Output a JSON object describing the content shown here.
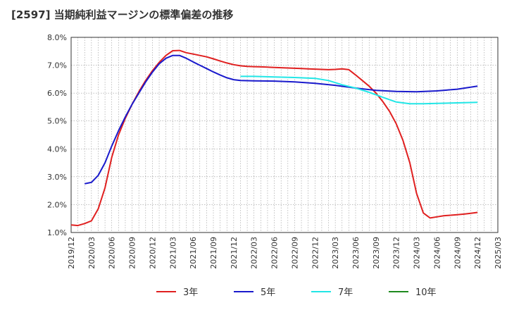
{
  "chart_data": {
    "type": "line",
    "title": "[2597]  当期純利益マージンの標準偏差の推移",
    "xlabel": "",
    "ylabel": "",
    "ylim": [
      1.0,
      8.0
    ],
    "yticks": [
      "1.0%",
      "2.0%",
      "3.0%",
      "4.0%",
      "5.0%",
      "6.0%",
      "7.0%",
      "8.0%"
    ],
    "xlim": [
      "2019-12",
      "2025-03"
    ],
    "xticks": [
      "2019/12",
      "2020/03",
      "2020/06",
      "2020/09",
      "2020/12",
      "2021/03",
      "2021/06",
      "2021/09",
      "2021/12",
      "2022/03",
      "2022/06",
      "2022/09",
      "2022/12",
      "2023/03",
      "2023/06",
      "2023/09",
      "2023/12",
      "2024/03",
      "2024/06",
      "2024/09",
      "2024/12",
      "2025/03"
    ],
    "grid": true,
    "legend_position": "bottom",
    "series": [
      {
        "name": "3年",
        "color": "#e02020",
        "points": [
          [
            "2019-12",
            1.27
          ],
          [
            "2020-01",
            1.25
          ],
          [
            "2020-02",
            1.32
          ],
          [
            "2020-03",
            1.42
          ],
          [
            "2020-04",
            1.85
          ],
          [
            "2020-05",
            2.6
          ],
          [
            "2020-06",
            3.7
          ],
          [
            "2020-07",
            4.5
          ],
          [
            "2020-08",
            5.1
          ],
          [
            "2020-09",
            5.6
          ],
          [
            "2020-10",
            6.05
          ],
          [
            "2020-11",
            6.45
          ],
          [
            "2020-12",
            6.8
          ],
          [
            "2021-01",
            7.1
          ],
          [
            "2021-02",
            7.35
          ],
          [
            "2021-03",
            7.52
          ],
          [
            "2021-04",
            7.53
          ],
          [
            "2021-05",
            7.45
          ],
          [
            "2021-06",
            7.4
          ],
          [
            "2021-07",
            7.35
          ],
          [
            "2021-08",
            7.3
          ],
          [
            "2021-09",
            7.23
          ],
          [
            "2021-10",
            7.15
          ],
          [
            "2021-11",
            7.08
          ],
          [
            "2021-12",
            7.02
          ],
          [
            "2022-01",
            6.98
          ],
          [
            "2022-02",
            6.96
          ],
          [
            "2022-03",
            6.95
          ],
          [
            "2022-04",
            6.94
          ],
          [
            "2022-05",
            6.93
          ],
          [
            "2022-06",
            6.92
          ],
          [
            "2022-07",
            6.91
          ],
          [
            "2022-08",
            6.9
          ],
          [
            "2022-09",
            6.89
          ],
          [
            "2022-10",
            6.88
          ],
          [
            "2022-11",
            6.87
          ],
          [
            "2022-12",
            6.86
          ],
          [
            "2023-01",
            6.85
          ],
          [
            "2023-02",
            6.84
          ],
          [
            "2023-03",
            6.85
          ],
          [
            "2023-04",
            6.87
          ],
          [
            "2023-05",
            6.84
          ],
          [
            "2023-06",
            6.65
          ],
          [
            "2023-07",
            6.45
          ],
          [
            "2023-08",
            6.25
          ],
          [
            "2023-09",
            6.0
          ],
          [
            "2023-10",
            5.7
          ],
          [
            "2023-11",
            5.35
          ],
          [
            "2023-12",
            4.9
          ],
          [
            "2024-01",
            4.3
          ],
          [
            "2024-02",
            3.5
          ],
          [
            "2024-03",
            2.4
          ],
          [
            "2024-04",
            1.7
          ],
          [
            "2024-05",
            1.52
          ],
          [
            "2024-06",
            1.56
          ],
          [
            "2024-07",
            1.6
          ],
          [
            "2024-08",
            1.62
          ],
          [
            "2024-09",
            1.64
          ],
          [
            "2024-10",
            1.66
          ],
          [
            "2024-11",
            1.69
          ],
          [
            "2024-12",
            1.72
          ]
        ]
      },
      {
        "name": "5年",
        "color": "#1a1acc",
        "points": [
          [
            "2020-02",
            2.75
          ],
          [
            "2020-03",
            2.8
          ],
          [
            "2020-04",
            3.05
          ],
          [
            "2020-05",
            3.5
          ],
          [
            "2020-06",
            4.1
          ],
          [
            "2020-07",
            4.65
          ],
          [
            "2020-08",
            5.15
          ],
          [
            "2020-09",
            5.6
          ],
          [
            "2020-10",
            6.0
          ],
          [
            "2020-11",
            6.4
          ],
          [
            "2020-12",
            6.75
          ],
          [
            "2021-01",
            7.05
          ],
          [
            "2021-02",
            7.25
          ],
          [
            "2021-03",
            7.35
          ],
          [
            "2021-04",
            7.35
          ],
          [
            "2021-05",
            7.25
          ],
          [
            "2021-06",
            7.12
          ],
          [
            "2021-07",
            7.0
          ],
          [
            "2021-08",
            6.88
          ],
          [
            "2021-09",
            6.76
          ],
          [
            "2021-10",
            6.65
          ],
          [
            "2021-11",
            6.55
          ],
          [
            "2021-12",
            6.48
          ],
          [
            "2022-01",
            6.45
          ],
          [
            "2022-03",
            6.44
          ],
          [
            "2022-06",
            6.43
          ],
          [
            "2022-09",
            6.4
          ],
          [
            "2022-12",
            6.35
          ],
          [
            "2023-03",
            6.28
          ],
          [
            "2023-06",
            6.18
          ],
          [
            "2023-09",
            6.1
          ],
          [
            "2023-12",
            6.06
          ],
          [
            "2024-03",
            6.05
          ],
          [
            "2024-06",
            6.08
          ],
          [
            "2024-09",
            6.14
          ],
          [
            "2024-12",
            6.25
          ]
        ]
      },
      {
        "name": "7年",
        "color": "#22e6e6",
        "points": [
          [
            "2022-01",
            6.6
          ],
          [
            "2022-03",
            6.6
          ],
          [
            "2022-06",
            6.58
          ],
          [
            "2022-09",
            6.56
          ],
          [
            "2022-12",
            6.53
          ],
          [
            "2023-02",
            6.45
          ],
          [
            "2023-04",
            6.3
          ],
          [
            "2023-06",
            6.18
          ],
          [
            "2023-08",
            6.03
          ],
          [
            "2023-10",
            5.85
          ],
          [
            "2023-12",
            5.68
          ],
          [
            "2024-02",
            5.62
          ],
          [
            "2024-04",
            5.62
          ],
          [
            "2024-06",
            5.63
          ],
          [
            "2024-09",
            5.65
          ],
          [
            "2024-12",
            5.67
          ]
        ]
      },
      {
        "name": "10年",
        "color": "#1e8a1e",
        "points": []
      }
    ]
  }
}
